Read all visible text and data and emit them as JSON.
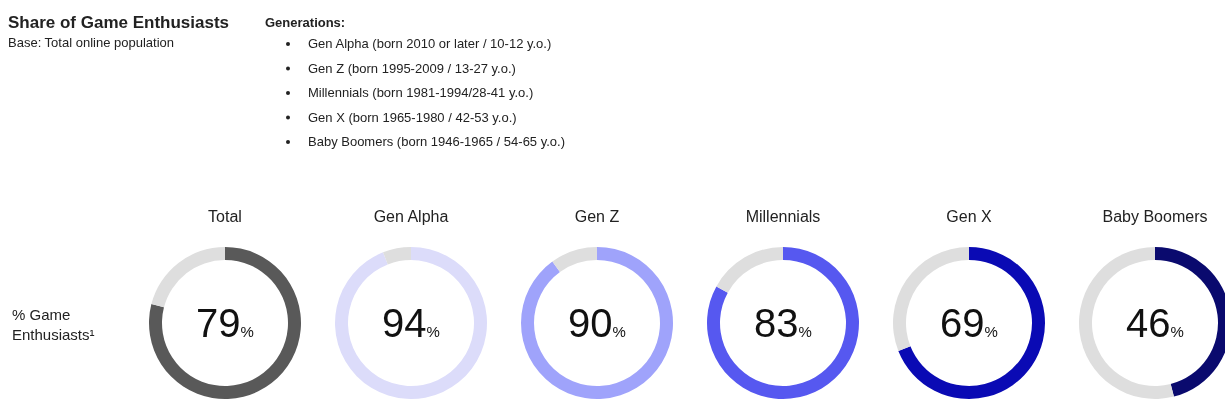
{
  "chart_data": [
    {
      "type": "other",
      "title": "Share of Game Enthusiasts",
      "subtitle": "Base: Total online population",
      "annotations": [
        "Generations:",
        "Gen Alpha (born 2010 or later / 10-12 y.o.)",
        "Gen Z (born 1995-2009 / 13-27 y.o.)",
        "Millennials (born 1981-1994/28-41 y.o.)",
        "Gen X (born 1965-1980 / 42-53 y.o.)",
        "Baby Boomers (born 1946-1965 / 54-65 y.o.)",
        "% Game Enthusiasts¹"
      ]
    },
    {
      "type": "donut",
      "title": "Total",
      "categories": [
        null,
        null
      ],
      "values": [
        79,
        21
      ],
      "colors": [
        "#595959",
        "#dedede"
      ],
      "annotations": [
        "79%"
      ]
    },
    {
      "type": "donut",
      "title": "Gen Alpha",
      "categories": [
        null,
        null
      ],
      "values": [
        94,
        6
      ],
      "colors": [
        "#dcdcfa",
        "#dedede"
      ],
      "annotations": [
        "94%"
      ]
    },
    {
      "type": "donut",
      "title": "Gen Z",
      "categories": [
        null,
        null
      ],
      "values": [
        90,
        10
      ],
      "colors": [
        "#9fa3fb",
        "#dedede"
      ],
      "annotations": [
        "90%"
      ]
    },
    {
      "type": "donut",
      "title": "Millennials",
      "categories": [
        null,
        null
      ],
      "values": [
        83,
        17
      ],
      "colors": [
        "#5658f0",
        "#dedede"
      ],
      "annotations": [
        "83%"
      ]
    },
    {
      "type": "donut",
      "title": "Gen X",
      "categories": [
        null,
        null
      ],
      "values": [
        69,
        31
      ],
      "colors": [
        "#0a0ab4",
        "#dedede"
      ],
      "annotations": [
        "69%"
      ]
    },
    {
      "type": "donut",
      "title": "Baby Boomers",
      "categories": [
        null,
        null
      ],
      "values": [
        46,
        54
      ],
      "colors": [
        "#0a0a6e",
        "#dedede"
      ],
      "annotations": [
        "46%"
      ]
    }
  ]
}
